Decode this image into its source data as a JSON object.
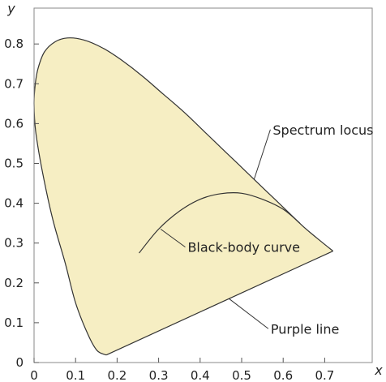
{
  "chart_data": {
    "type": "area",
    "xlabel": "x",
    "ylabel": "y",
    "xlim": [
      0,
      0.8
    ],
    "ylim": [
      0,
      0.9
    ],
    "xticks": [
      "0",
      "0.1",
      "0.2",
      "0.3",
      "0.4",
      "0.5",
      "0.6",
      "0.7"
    ],
    "yticks": [
      "0",
      "0.1",
      "0.2",
      "0.3",
      "0.4",
      "0.5",
      "0.6",
      "0.7",
      "0.8"
    ],
    "grid": false,
    "fill_color": "#f6eec3",
    "line_color": "#333333",
    "series": [
      {
        "name": "Spectrum locus",
        "x": [
          0.174,
          0.152,
          0.13,
          0.1,
          0.075,
          0.045,
          0.02,
          0.004,
          0.0,
          0.003,
          0.01,
          0.025,
          0.05,
          0.08,
          0.12,
          0.165,
          0.21,
          0.26,
          0.31,
          0.36,
          0.41,
          0.46,
          0.51,
          0.56,
          0.61,
          0.65,
          0.69,
          0.72
        ],
        "y": [
          0.019,
          0.03,
          0.07,
          0.15,
          0.25,
          0.36,
          0.48,
          0.58,
          0.65,
          0.7,
          0.74,
          0.78,
          0.805,
          0.815,
          0.81,
          0.79,
          0.76,
          0.72,
          0.675,
          0.63,
          0.58,
          0.53,
          0.48,
          0.43,
          0.38,
          0.34,
          0.305,
          0.28
        ]
      },
      {
        "name": "Purple line",
        "x": [
          0.174,
          0.72
        ],
        "y": [
          0.019,
          0.28
        ]
      },
      {
        "name": "Black-body curve",
        "x": [
          0.253,
          0.3,
          0.35,
          0.4,
          0.45,
          0.5,
          0.55,
          0.6,
          0.64
        ],
        "y": [
          0.275,
          0.335,
          0.38,
          0.41,
          0.424,
          0.425,
          0.41,
          0.385,
          0.35
        ]
      }
    ],
    "annotations": [
      {
        "text": "Spectrum locus",
        "x": 0.575,
        "y": 0.585,
        "point_x": 0.53,
        "point_y": 0.46
      },
      {
        "text": "Black-body curve",
        "x": 0.37,
        "y": 0.29,
        "point_x": 0.305,
        "point_y": 0.335
      },
      {
        "text": "Purple line",
        "x": 0.57,
        "y": 0.085,
        "point_x": 0.47,
        "point_y": 0.16
      }
    ]
  }
}
